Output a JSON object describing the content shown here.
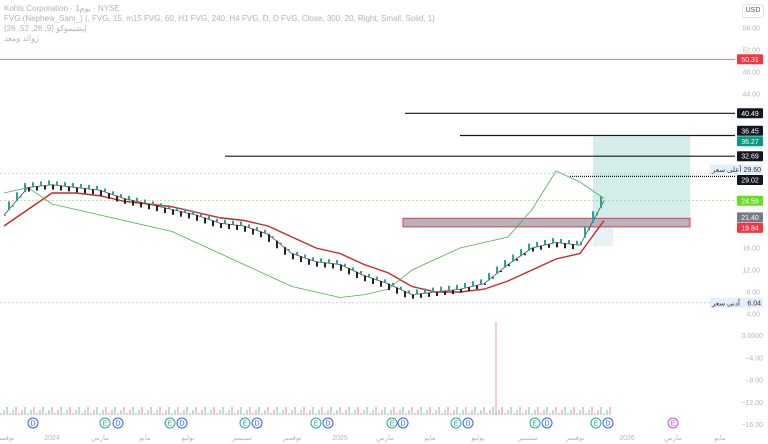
{
  "header": {
    "symbol_line": "Kohls Corporation · 1يوم · NYSE",
    "indicator_1": "FVG (Nephew_Sam_) (, FVG, 15, m15 FVG, 60, H1 FVG, 240, H4 FVG, D, D FVG, Close, 300, 20, Right, Small, Solid, 1)",
    "indicator_2": "إيشيموكو (9, 26, 52, 26)",
    "indicator_3": "زوائد ومعد"
  },
  "currency_button": "USD",
  "colors": {
    "up": "#26a69a",
    "down": "#ef5350",
    "trend": "#c62828",
    "green_line": "#4caf50",
    "last_price": "#66dd22"
  },
  "chart_data": {
    "type": "line",
    "x": [
      "2023-11",
      "2023-12",
      "2024-01",
      "2024-02",
      "2024-03",
      "2024-04",
      "2024-05",
      "2024-06",
      "2024-07",
      "2024-08",
      "2024-09",
      "2024-10",
      "2024-11",
      "2024-12",
      "2025-01",
      "2025-02",
      "2025-03",
      "2025-04",
      "2025-05",
      "2025-06",
      "2025-07",
      "2025-08",
      "2025-09",
      "2025-10",
      "2025-11",
      "2025-12"
    ],
    "series": [
      {
        "role": "price",
        "values": [
          22,
          27,
          27.5,
          27,
          26.5,
          25,
          24,
          23,
          22,
          20.5,
          20,
          18.5,
          15,
          13.5,
          13,
          11,
          9.5,
          7.5,
          8,
          8.5,
          9.5,
          13,
          16,
          17,
          16.5,
          24.6
        ]
      },
      {
        "role": "trend",
        "values": [
          20,
          23,
          26,
          26,
          25.5,
          24.5,
          24,
          23.5,
          22.5,
          21.5,
          21,
          20,
          18,
          16,
          15,
          13,
          11.5,
          9,
          8,
          8,
          8.5,
          10,
          12,
          14,
          15,
          21
        ]
      },
      {
        "role": "lagging",
        "values": [
          26,
          27,
          24,
          23,
          22,
          21,
          20,
          19,
          17,
          15,
          13,
          11,
          9,
          8,
          7,
          7.5,
          8.5,
          12,
          14,
          16,
          17,
          18,
          23,
          30,
          28,
          25
        ]
      }
    ],
    "y_ticks": [
      "56.00",
      "52.00",
      "48.00",
      "44.00",
      "16.00",
      "12.00",
      "8.00",
      "4.00"
    ],
    "lower_ticks": [
      "0.0000",
      "−4.00",
      "−8.00",
      "−12.00",
      "−16.00"
    ],
    "x_ticks": [
      "نوفمبر",
      "2024",
      "مارس",
      "مايو",
      "يوليو",
      "سبتمبر",
      "نوفمبر",
      "2025",
      "مارس",
      "مايو",
      "يوليو",
      "سبتمبر",
      "نوفمبر",
      "2026",
      "مارس",
      "مايو"
    ],
    "levels": [
      {
        "value": 50.31,
        "label": "50.31",
        "color": "#f23645"
      },
      {
        "value": 40.49,
        "label": "40.49",
        "color": "#131722"
      },
      {
        "value": 36.45,
        "label": "36.45",
        "color": "#131722"
      },
      {
        "value": 36.27,
        "label": "36.27",
        "color": "#089981"
      },
      {
        "value": 32.69,
        "label": "32.69",
        "color": "#131722"
      },
      {
        "value": 29.02,
        "label": "29.02",
        "color": "#131722"
      },
      {
        "value": 24.59,
        "label": "24.59",
        "color": "#66dd22"
      },
      {
        "value": 21.4,
        "label": "21.40",
        "color": "#787b86"
      },
      {
        "value": 19.84,
        "label": "19.84",
        "color": "#f23645"
      }
    ],
    "high": {
      "value": 29.6,
      "label": "29.60",
      "tag": "أعلى سعر"
    },
    "low": {
      "value": 6.04,
      "label": "6.04",
      "tag": "أدنى سعر"
    },
    "events": [
      "D",
      "E",
      "D",
      "E",
      "D",
      "E",
      "D",
      "E",
      "D",
      "E",
      "D",
      "E",
      "D",
      "E",
      "D",
      "E",
      "D",
      "E"
    ]
  }
}
